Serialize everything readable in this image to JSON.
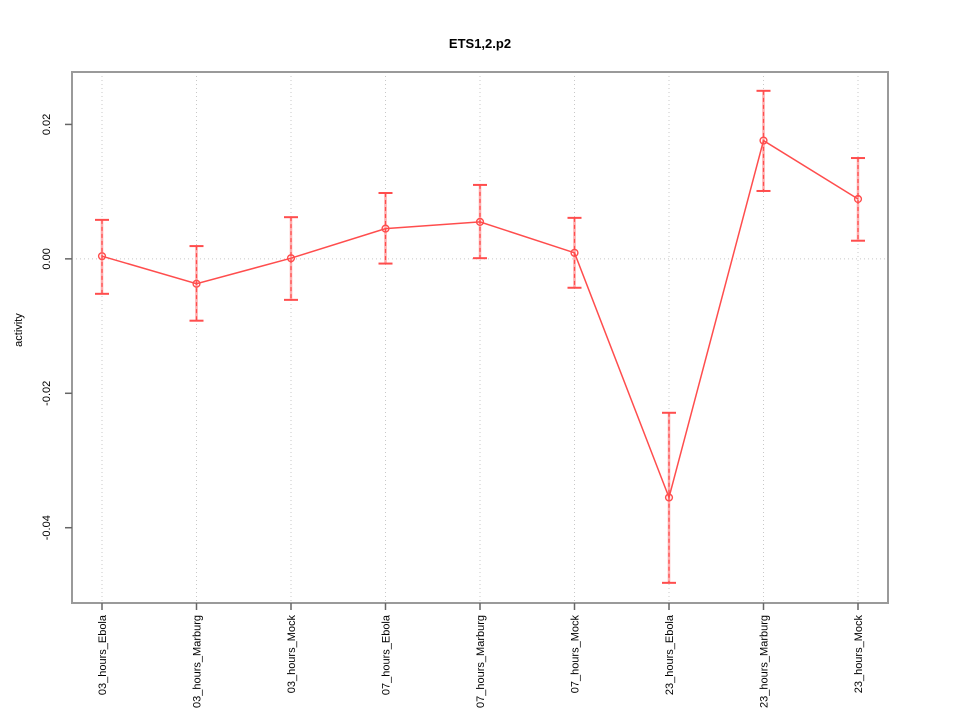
{
  "chart_data": {
    "type": "line",
    "title": "ETS1,2.p2",
    "xlabel": "",
    "ylabel": "activity",
    "categories": [
      "03_hours_Ebola",
      "03_hours_Marburg",
      "03_hours_Mock",
      "07_hours_Ebola",
      "07_hours_Marburg",
      "07_hours_Mock",
      "23_hours_Ebola",
      "23_hours_Marburg",
      "23_hours_Mock"
    ],
    "series": [
      {
        "name": "activity",
        "values": [
          0.0004,
          -0.0037,
          0.0001,
          0.0045,
          0.0055,
          0.0009,
          -0.0355,
          0.0176,
          0.0089
        ],
        "lower": [
          -0.0052,
          -0.0092,
          -0.0061,
          -0.0007,
          0.0001,
          -0.0043,
          -0.0482,
          0.0101,
          0.0027
        ],
        "upper": [
          0.0058,
          0.0019,
          0.0062,
          0.0098,
          0.011,
          0.0061,
          -0.0229,
          0.025,
          0.015
        ]
      }
    ],
    "axis": {
      "ymin": -0.0512,
      "ymax": 0.0278,
      "yticks": [
        0.02,
        0.0,
        -0.02,
        -0.04
      ],
      "ytick_labels": [
        "0.02",
        "0.00",
        "-0.02",
        "-0.04"
      ],
      "grid_vertical": "at each category, dotted",
      "grid_horizontal_at": 0,
      "legend": "none"
    },
    "colors": {
      "line": "#ff4d4d",
      "errorbar_stem": "#ffabab",
      "errorbar_dash": "#ff4d4d",
      "marker_stroke": "#ff4d4d",
      "grid": "#c8c8c8",
      "box": "#9a9a9a",
      "tick": "#666666",
      "text": "#000000",
      "background": "#ffffff"
    }
  }
}
